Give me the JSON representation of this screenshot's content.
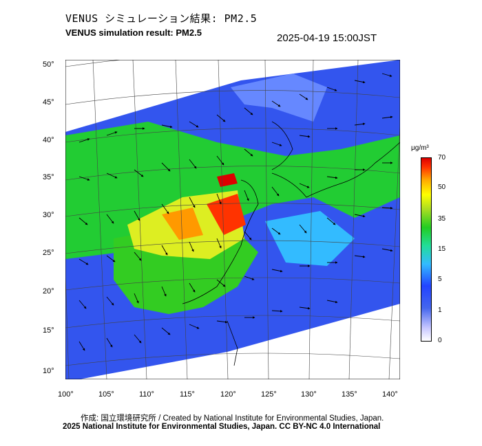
{
  "title_jp": "VENUS シミュレーション結果: PM2.5",
  "title_en": "VENUS simulation result: PM2.5",
  "timestamp": "2025-04-19 15:00JST",
  "lat_labels": [
    "50°",
    "45°",
    "40°",
    "35°",
    "30°",
    "25°",
    "20°",
    "15°",
    "10°"
  ],
  "lon_labels": [
    "100°",
    "105°",
    "110°",
    "115°",
    "120°",
    "125°",
    "130°",
    "135°",
    "140°"
  ],
  "colorbar": {
    "unit": "μg/m³",
    "ticks": [
      "70",
      "50",
      "35",
      "15",
      "5",
      "1",
      "0"
    ]
  },
  "footer_credit": "作成: 国立環境研究所 / Created by National Institute for Environmental Studies, Japan.",
  "footer_license": "2025 National Institute for Environmental Studies, Japan. CC BY-NC 4.0 International",
  "colors": {
    "low": "#4466ee",
    "mid": "#22cc22",
    "high": "#ff3300",
    "max": "#dd0000"
  }
}
